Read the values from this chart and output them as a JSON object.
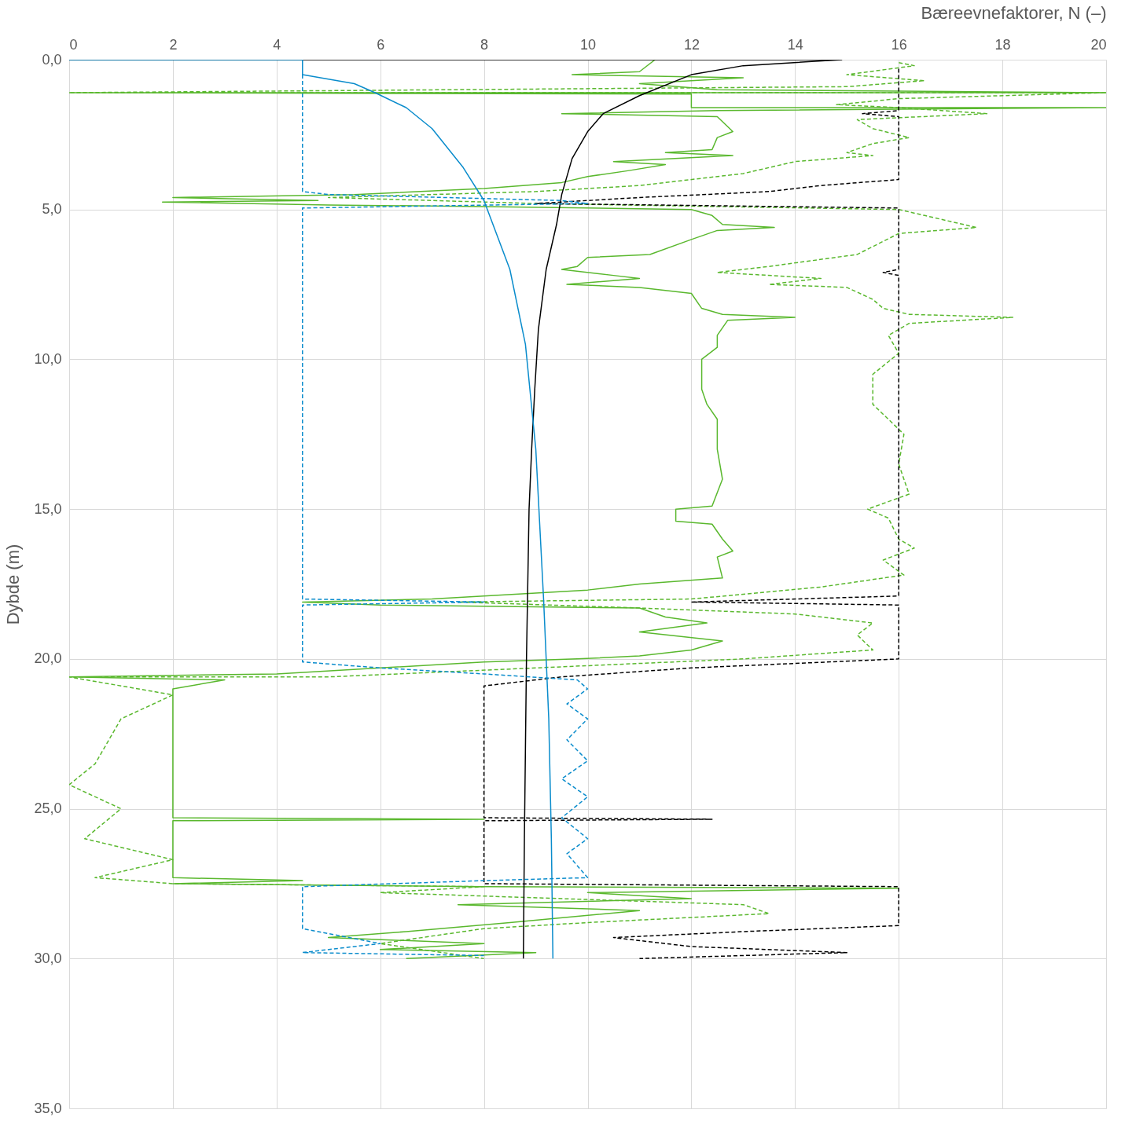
{
  "chart_data": {
    "type": "line",
    "xlabel": "Bæreevnefaktorer, N (–)",
    "ylabel": "Dybde (m)",
    "xlim": [
      0,
      20
    ],
    "xticks": [
      0,
      2,
      4,
      6,
      8,
      10,
      12,
      14,
      16,
      18,
      20
    ],
    "ylim": [
      35,
      0
    ],
    "yticks": [
      {
        "value": 0,
        "label": "0,0"
      },
      {
        "value": 5,
        "label": "5,0"
      },
      {
        "value": 10,
        "label": "10,0"
      },
      {
        "value": 15,
        "label": "15,0"
      },
      {
        "value": 20,
        "label": "20,0"
      },
      {
        "value": 25,
        "label": "25,0"
      },
      {
        "value": 30,
        "label": "30,0"
      },
      {
        "value": 35,
        "label": "35,0"
      }
    ],
    "grid": true,
    "marker": "none",
    "series": [
      {
        "color": "#5ab82e",
        "line_style": "solid",
        "x": [
          11.3,
          11,
          9.7,
          13,
          11,
          12.5,
          20,
          0,
          12,
          12,
          20,
          12.5,
          9.5,
          12.5,
          12.8,
          12.5,
          12.4,
          11.5,
          12.8,
          10.5,
          11.5,
          10.8,
          10,
          9.5,
          8,
          5.5,
          2,
          4.8,
          1.8,
          5,
          8,
          12,
          12.4,
          12.6,
          13.6,
          12.5,
          12,
          11.2,
          10,
          9.8,
          9.5,
          10.5,
          11,
          9.6,
          11,
          12,
          12.2,
          12.6,
          14,
          12.7,
          12.5,
          12.5,
          12.2,
          12.2,
          12.3,
          12.5,
          12.5,
          12.6,
          12.4,
          11.7,
          11.7,
          12.4,
          12.6,
          12.8,
          12.5,
          12.6,
          11,
          10,
          7,
          4.5,
          6,
          11,
          11.5,
          12.3,
          11,
          12.6,
          12,
          11,
          9.8,
          8,
          6,
          4,
          0,
          3,
          2,
          2,
          8,
          2,
          2,
          4.5,
          2,
          8,
          16,
          10,
          12,
          7.5,
          11,
          8.5,
          6.5,
          5,
          8,
          6,
          9,
          6.5
        ],
        "values": [
          0,
          0.4,
          0.5,
          0.6,
          0.8,
          1.0,
          1.1,
          1.1,
          1.15,
          1.6,
          1.6,
          1.7,
          1.8,
          1.9,
          2.4,
          2.6,
          3.0,
          3.1,
          3.2,
          3.4,
          3.5,
          3.7,
          3.9,
          4.1,
          4.3,
          4.5,
          4.6,
          4.7,
          4.75,
          4.85,
          4.9,
          5.0,
          5.2,
          5.5,
          5.6,
          5.7,
          6.0,
          6.5,
          6.6,
          6.9,
          7.0,
          7.2,
          7.3,
          7.5,
          7.6,
          7.8,
          8.3,
          8.5,
          8.6,
          8.7,
          9.2,
          9.6,
          10.0,
          11.0,
          11.5,
          12,
          13,
          14,
          14.9,
          15.0,
          15.4,
          15.5,
          16,
          16.4,
          16.6,
          17.3,
          17.5,
          17.7,
          18.0,
          18.1,
          18.2,
          18.3,
          18.6,
          18.8,
          19.1,
          19.4,
          19.7,
          19.9,
          20.0,
          20.1,
          20.3,
          20.5,
          20.6,
          20.7,
          21.0,
          25.3,
          25.35,
          25.4,
          27.3,
          27.4,
          27.5,
          27.6,
          27.65,
          27.8,
          28,
          28.2,
          28.4,
          28.8,
          29.1,
          29.3,
          29.5,
          29.7,
          29.8,
          30
        ]
      },
      {
        "color": "#5ab82e",
        "line_style": "dashed",
        "x": [
          16,
          16.3,
          15,
          16.5,
          15,
          0,
          20,
          16,
          14.8,
          16,
          17.7,
          15.2,
          15.5,
          16.2,
          15.5,
          15,
          15.5,
          14,
          13.5,
          13,
          11,
          9,
          5,
          9,
          16,
          16.5,
          17.5,
          16,
          15.2,
          13.5,
          12.5,
          14.5,
          13.5,
          15,
          15.5,
          15.7,
          16.2,
          18.2,
          16.2,
          15.8,
          16,
          15.5,
          15.5,
          16.1,
          16,
          16.2,
          15.4,
          15.8,
          16,
          16.3,
          15.7,
          16.1,
          14.5,
          12,
          7.5,
          11,
          14,
          15.5,
          15.2,
          15.5,
          13,
          9,
          5,
          0,
          2,
          1,
          0.5,
          0,
          1,
          0.3,
          2,
          0.5,
          2,
          8,
          6,
          13,
          13.5,
          10,
          8,
          6,
          8
        ],
        "values": [
          0.1,
          0.2,
          0.5,
          0.7,
          0.9,
          1.1,
          1.1,
          1.3,
          1.5,
          1.6,
          1.8,
          2.0,
          2.3,
          2.6,
          2.8,
          3.1,
          3.2,
          3.4,
          3.6,
          3.8,
          4.2,
          4.4,
          4.6,
          4.8,
          5.0,
          5.2,
          5.6,
          5.8,
          6.5,
          6.9,
          7.1,
          7.3,
          7.5,
          7.6,
          8.0,
          8.3,
          8.5,
          8.6,
          8.8,
          9.2,
          9.8,
          10.5,
          11.5,
          12.5,
          13.5,
          14.5,
          15,
          15.3,
          16,
          16.3,
          16.7,
          17.2,
          17.6,
          18.0,
          18.1,
          18.3,
          18.5,
          18.8,
          19.2,
          19.7,
          20,
          20.3,
          20.6,
          20.6,
          21.2,
          22.0,
          23.5,
          24.2,
          25.0,
          26,
          26.7,
          27.3,
          27.5,
          27.6,
          27.8,
          28.2,
          28.5,
          28.8,
          29.0,
          29.5,
          30
        ]
      },
      {
        "color": "#000000",
        "line_style": "solid",
        "x": [
          0,
          14.9,
          13,
          12,
          11,
          10.3,
          10,
          9.7,
          9.5,
          9.4,
          9.2,
          9.05,
          8.98,
          8.92,
          8.87,
          8.84,
          8.82,
          8.8,
          8.78,
          8.76
        ],
        "values": [
          0,
          0,
          0.2,
          0.5,
          1.2,
          1.8,
          2.4,
          3.3,
          4.5,
          5.5,
          7,
          9,
          11,
          13,
          15,
          18,
          20,
          23,
          26,
          30
        ]
      },
      {
        "color": "#000000",
        "line_style": "dashed",
        "x": [
          16,
          16,
          15.3,
          16,
          16,
          14.5,
          13.5,
          11,
          9,
          16,
          16,
          15.7,
          16,
          16,
          12,
          16,
          16,
          12,
          9.5,
          8,
          8,
          8,
          12.4,
          8,
          8,
          16,
          16,
          13,
          10.5,
          12,
          15,
          11
        ],
        "values": [
          0.3,
          1.7,
          1.8,
          1.9,
          4.0,
          4.2,
          4.4,
          4.6,
          4.8,
          4.95,
          7,
          7.1,
          7.2,
          17.9,
          18.1,
          18.2,
          20,
          20.3,
          20.6,
          20.9,
          23.4,
          25.3,
          25.35,
          25.4,
          27.5,
          27.6,
          28.9,
          29.1,
          29.3,
          29.6,
          29.8,
          30
        ]
      },
      {
        "color": "#0a8ccc",
        "line_style": "solid",
        "x": [
          0,
          4.5,
          4.5,
          5.5,
          5.9,
          6.5,
          7,
          7.6,
          8,
          8.5,
          8.8,
          9,
          9.15,
          9.25,
          9.3,
          9.33
        ],
        "values": [
          0,
          0,
          0.5,
          0.8,
          1.1,
          1.6,
          2.3,
          3.6,
          4.7,
          7,
          9.5,
          13,
          18,
          22,
          26,
          30
        ]
      },
      {
        "color": "#0a8ccc",
        "line_style": "dashed",
        "x": [
          4.5,
          4.5,
          5,
          9.5,
          10,
          4.5,
          4.5,
          8,
          4.5,
          4.5,
          6,
          8,
          9.8,
          10,
          9.6,
          10,
          9.6,
          10,
          9.5,
          10,
          9.5,
          10,
          9.6,
          10,
          8,
          4.5,
          4.5,
          6,
          4.5,
          8
        ],
        "values": [
          0.5,
          4.4,
          4.5,
          4.7,
          4.8,
          4.95,
          18,
          18.1,
          18.2,
          20.1,
          20.3,
          20.5,
          20.7,
          21,
          21.5,
          22,
          22.7,
          23.4,
          24,
          24.6,
          25.3,
          26,
          26.5,
          27.3,
          27.4,
          27.6,
          29,
          29.5,
          29.8,
          29.9
        ]
      }
    ]
  }
}
